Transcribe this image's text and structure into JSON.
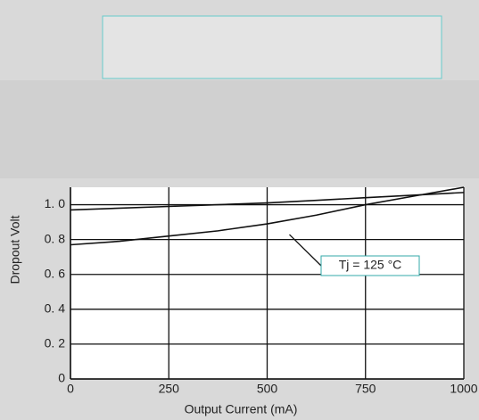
{
  "chart_data": {
    "type": "line",
    "xlabel": "Output Current (mA)",
    "ylabel": "Dropout Volt",
    "x": [
      0,
      125,
      250,
      375,
      500,
      625,
      750,
      875,
      1000
    ],
    "series": [
      {
        "color": "#111111",
        "values": [
          0.97,
          0.98,
          0.99,
          1.0,
          1.01,
          1.025,
          1.04,
          1.055,
          1.07
        ]
      },
      {
        "color": "#111111",
        "values": [
          0.77,
          0.79,
          0.82,
          0.85,
          0.89,
          0.94,
          1.0,
          1.05,
          1.1
        ]
      }
    ],
    "annotations": [
      {
        "text": "Tj = 125 °C",
        "x": 500,
        "y": 0.89
      }
    ],
    "xlim": [
      0,
      1000
    ],
    "xticks": [
      0,
      250,
      500,
      750,
      1000
    ],
    "ylim": [
      0,
      1.1
    ],
    "yticks": [
      0,
      {
        "value": 0.2,
        "label": "0. 2"
      },
      {
        "value": 0.4,
        "label": "0. 4"
      },
      {
        "value": 0.6,
        "label": "0. 6"
      },
      {
        "value": 0.8,
        "label": "0. 8"
      },
      {
        "value": 1.0,
        "label": "1. 0"
      }
    ],
    "grid": true
  }
}
